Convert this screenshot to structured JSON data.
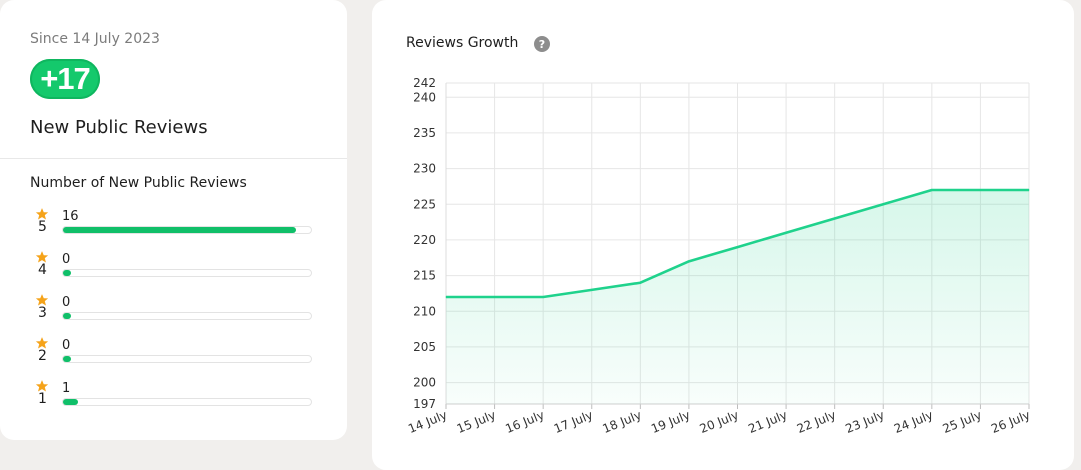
{
  "summary": {
    "since_label": "Since 14 July 2023",
    "new_count": "+17",
    "title": "New Public Reviews",
    "breakdown_title": "Number of New Public Reviews",
    "star_color": "#f5a31a",
    "bar_color": "#10bf69",
    "ratings": [
      {
        "stars": "5",
        "count": "16",
        "fraction": 0.94
      },
      {
        "stars": "4",
        "count": "0",
        "fraction": 0
      },
      {
        "stars": "3",
        "count": "0",
        "fraction": 0
      },
      {
        "stars": "2",
        "count": "0",
        "fraction": 0
      },
      {
        "stars": "1",
        "count": "1",
        "fraction": 0.06
      }
    ]
  },
  "chart": {
    "title": "Reviews Growth",
    "help_icon": "question-circle-icon",
    "help_glyph": "?"
  },
  "chart_data": {
    "type": "area",
    "title": "Reviews Growth",
    "x": [
      "14 July",
      "15 July",
      "16 July",
      "17 July",
      "18 July",
      "19 July",
      "20 July",
      "21 July",
      "22 July",
      "23 July",
      "24 July",
      "25 July",
      "26 July"
    ],
    "series": [
      {
        "values": [
          212,
          212,
          212,
          213,
          214,
          217,
          219,
          221,
          223,
          225,
          227,
          227,
          227
        ]
      }
    ],
    "ylim": [
      197,
      242
    ],
    "yticks": [
      197,
      200,
      205,
      210,
      215,
      220,
      225,
      230,
      235,
      240,
      242
    ],
    "grid": true,
    "line_color": "#1fd28c",
    "fill_color": "#1fd28c"
  }
}
